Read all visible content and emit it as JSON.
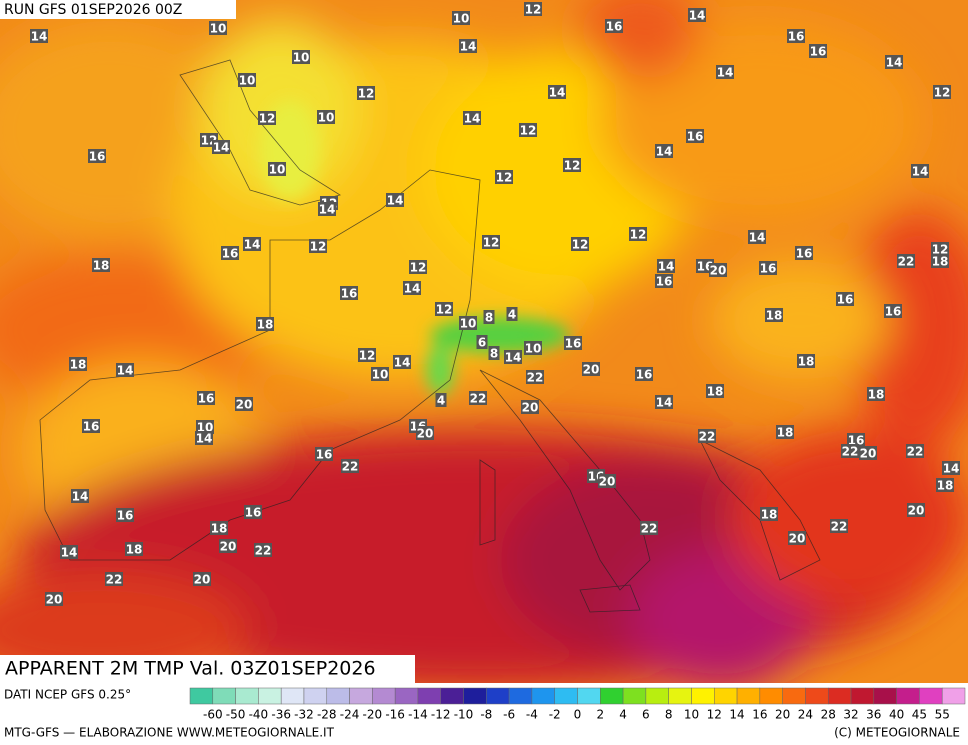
{
  "header": {
    "run_label": "RUN GFS 01SEP2026 00Z",
    "title": "APPARENT 2M TMP Val. 03Z01SEP2026"
  },
  "map_labels": [
    14,
    10,
    10,
    12,
    16,
    14,
    14,
    10,
    10,
    12,
    14,
    16,
    16,
    14,
    14,
    12,
    12,
    10,
    14,
    12,
    12,
    14,
    16,
    10,
    12,
    14,
    16,
    14,
    12,
    12,
    14,
    14,
    14,
    16,
    12,
    12,
    12,
    12,
    14,
    14,
    16,
    20,
    16,
    16,
    22,
    12,
    18,
    18,
    12,
    14,
    16,
    16,
    18,
    12,
    10,
    8,
    4,
    18,
    16,
    16,
    12,
    14,
    10,
    18,
    14,
    6,
    8,
    14,
    10,
    16,
    22,
    20,
    16,
    18,
    16,
    20,
    4,
    22,
    20,
    14,
    18,
    18,
    10,
    14,
    16,
    16,
    20,
    16,
    22,
    22,
    18,
    16,
    22,
    20,
    22,
    14,
    18,
    16,
    20,
    14,
    16,
    16,
    18,
    20,
    22,
    18,
    14,
    18,
    22,
    20,
    22,
    20,
    22,
    20,
    20
  ],
  "colorbar": {
    "ticks": [
      -60,
      -50,
      -40,
      -36,
      -32,
      -28,
      -24,
      -20,
      -16,
      -14,
      -12,
      -10,
      -8,
      -6,
      -4,
      -2,
      0,
      2,
      4,
      6,
      8,
      10,
      12,
      14,
      16,
      20,
      24,
      28,
      32,
      36,
      40,
      45,
      55
    ],
    "colors": [
      "#3fc9a0",
      "#7fdcb8",
      "#a9ead0",
      "#c9f2e2",
      "#dfe6f6",
      "#cfd2f0",
      "#bcbce8",
      "#c6a8de",
      "#b48ad2",
      "#9a66c2",
      "#7e3fb0",
      "#4b1f96",
      "#1e1e9c",
      "#1e3fc8",
      "#1e6ae0",
      "#1e95ee",
      "#2ebcf2",
      "#52d7f0",
      "#30d030",
      "#7ee020",
      "#b8ee10",
      "#e6f410",
      "#fff200",
      "#ffd400",
      "#ffb000",
      "#ff8c00",
      "#f86a10",
      "#ee4a1a",
      "#dc2c22",
      "#c01830",
      "#a8104a",
      "#c41e8c",
      "#e040c0",
      "#f0a0e8"
    ]
  },
  "footer": {
    "source": "DATI NCEP GFS 0.25°",
    "credit_left": "MTG-GFS — ELABORAZIONE WWW.METEOGIORNALE.IT",
    "credit_right": "(C) METEOGIORNALE"
  }
}
